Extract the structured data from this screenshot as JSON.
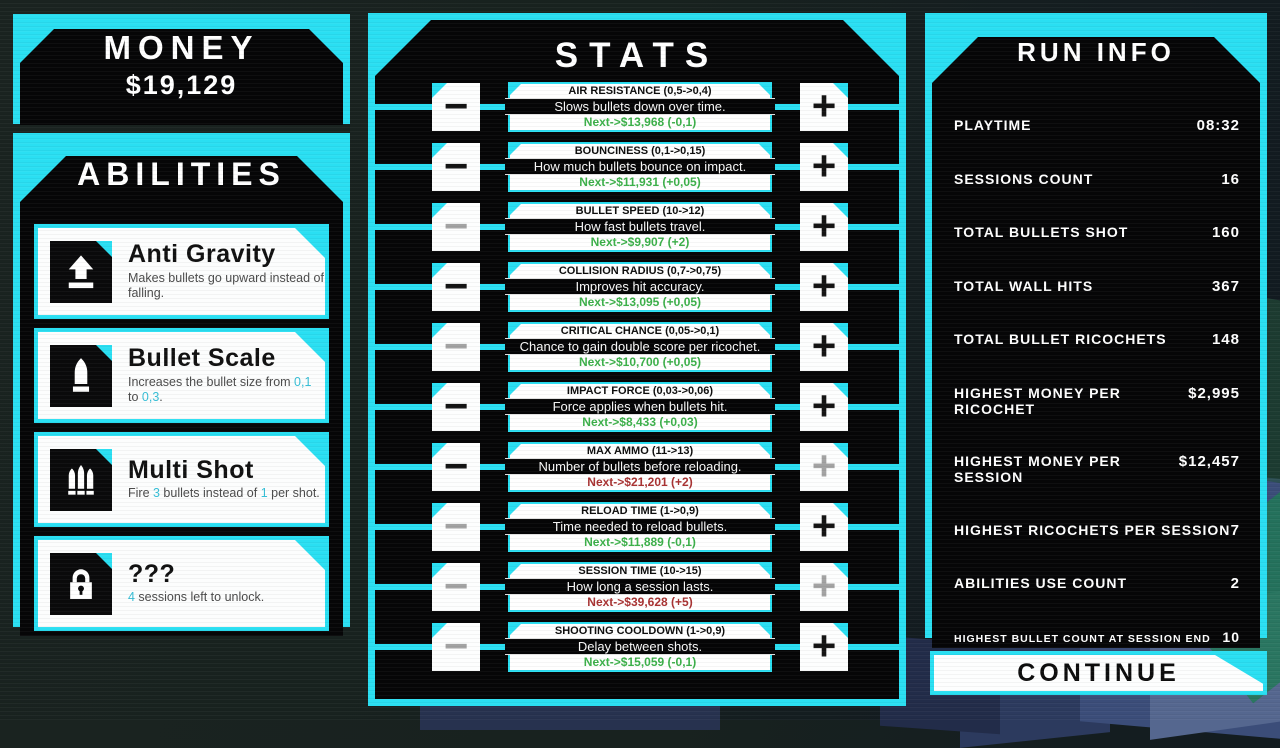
{
  "colors": {
    "accent_cyan": "#2adff2",
    "affordable_green": "#3cb04a",
    "expensive_red": "#a83232",
    "panel_black": "#060607"
  },
  "money": {
    "title": "MONEY",
    "value": "$19,129"
  },
  "abilities": {
    "title": "ABILITIES",
    "items": [
      {
        "icon": "anti-gravity-icon",
        "title": "Anti Gravity",
        "desc_parts": [
          {
            "text": "Makes bullets go upward instead of falling."
          }
        ]
      },
      {
        "icon": "bullet-scale-icon",
        "title": "Bullet Scale",
        "desc_parts": [
          {
            "text": "Increases the bullet size from "
          },
          {
            "text": "0,1",
            "hl": true
          },
          {
            "text": " to "
          },
          {
            "text": "0,3",
            "hl": true
          },
          {
            "text": "."
          }
        ]
      },
      {
        "icon": "multi-shot-icon",
        "title": "Multi Shot",
        "desc_parts": [
          {
            "text": "Fire "
          },
          {
            "text": "3",
            "hl": true
          },
          {
            "text": " bullets instead of "
          },
          {
            "text": "1",
            "hl": true
          },
          {
            "text": " per shot."
          }
        ]
      },
      {
        "icon": "lock-icon",
        "title": "???",
        "desc_parts": [
          {
            "text": "4",
            "hl": true
          },
          {
            "text": " sessions left to unlock."
          }
        ]
      }
    ]
  },
  "stats": {
    "title": "STATS",
    "minus_symbol": "−",
    "plus_symbol": "+",
    "rows": [
      {
        "name": "AIR RESISTANCE (0,5->0,4)",
        "desc": "Slows bullets down over time.",
        "next": "Next->$13,968 (-0,1)",
        "next_state": "affordable",
        "minus_enabled": true,
        "plus_enabled": true
      },
      {
        "name": "BOUNCINESS (0,1->0,15)",
        "desc": "How much bullets bounce on impact.",
        "next": "Next->$11,931 (+0,05)",
        "next_state": "affordable",
        "minus_enabled": true,
        "plus_enabled": true
      },
      {
        "name": "BULLET SPEED (10->12)",
        "desc": "How fast bullets travel.",
        "next": "Next->$9,907 (+2)",
        "next_state": "affordable",
        "minus_enabled": false,
        "plus_enabled": true
      },
      {
        "name": "COLLISION RADIUS (0,7->0,75)",
        "desc": "Improves hit accuracy.",
        "next": "Next->$13,095 (+0,05)",
        "next_state": "affordable",
        "minus_enabled": true,
        "plus_enabled": true
      },
      {
        "name": "CRITICAL CHANCE (0,05->0,1)",
        "desc": "Chance to gain double score per ricochet.",
        "next": "Next->$10,700 (+0,05)",
        "next_state": "affordable",
        "minus_enabled": false,
        "plus_enabled": true
      },
      {
        "name": "IMPACT FORCE (0,03->0,06)",
        "desc": "Force applies when bullets hit.",
        "next": "Next->$8,433 (+0,03)",
        "next_state": "affordable",
        "minus_enabled": true,
        "plus_enabled": true
      },
      {
        "name": "MAX AMMO (11->13)",
        "desc": "Number of bullets before reloading.",
        "next": "Next->$21,201 (+2)",
        "next_state": "expensive",
        "minus_enabled": true,
        "plus_enabled": false
      },
      {
        "name": "RELOAD TIME (1->0,9)",
        "desc": "Time needed to reload bullets.",
        "next": "Next->$11,889 (-0,1)",
        "next_state": "affordable",
        "minus_enabled": false,
        "plus_enabled": true
      },
      {
        "name": "SESSION TIME (10->15)",
        "desc": "How long a session lasts.",
        "next": "Next->$39,628 (+5)",
        "next_state": "expensive",
        "minus_enabled": false,
        "plus_enabled": false
      },
      {
        "name": "SHOOTING COOLDOWN (1->0,9)",
        "desc": "Delay between shots.",
        "next": "Next->$15,059 (-0,1)",
        "next_state": "affordable",
        "minus_enabled": false,
        "plus_enabled": true
      }
    ]
  },
  "run_info": {
    "title": "RUN INFO",
    "rows": [
      {
        "label": "PLAYTIME",
        "value": "08:32"
      },
      {
        "label": "SESSIONS COUNT",
        "value": "16"
      },
      {
        "label": "TOTAL BULLETS SHOT",
        "value": "160"
      },
      {
        "label": "TOTAL WALL HITS",
        "value": "367"
      },
      {
        "label": "TOTAL BULLET RICOCHETS",
        "value": "148"
      },
      {
        "label": "HIGHEST MONEY PER RICOCHET",
        "value": "$2,995"
      },
      {
        "label": "HIGHEST MONEY PER SESSION",
        "value": "$12,457"
      },
      {
        "label": "HIGHEST RICOCHETS PER SESSION",
        "value": "7"
      },
      {
        "label": "ABILITIES USE COUNT",
        "value": "2"
      },
      {
        "label": "HIGHEST BULLET COUNT AT SESSION END",
        "value": "10",
        "small": true
      }
    ]
  },
  "continue_button": {
    "label": "CONTINUE"
  }
}
